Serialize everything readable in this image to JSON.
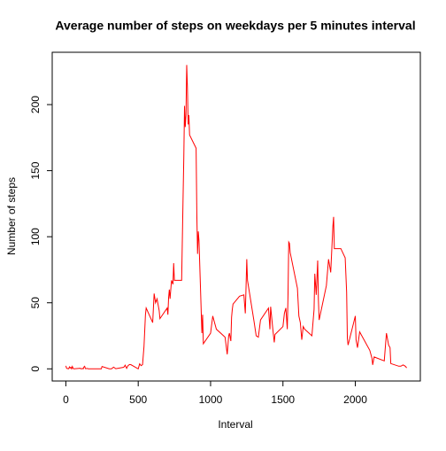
{
  "chart_data": {
    "type": "line",
    "title": "Average number of steps on weekdays per 5 minutes interval",
    "xlabel": "Interval",
    "ylabel": "Number of steps",
    "xlim": [
      -94.2,
      2449.2
    ],
    "xticks": [
      0,
      500,
      1000,
      1500,
      2000
    ],
    "ylim": [
      -9.2,
      239.6
    ],
    "yticks": [
      0,
      50,
      100,
      150,
      200
    ],
    "grid": false,
    "series": [
      {
        "color": "#ff0000",
        "x": [
          0,
          5,
          10,
          15,
          20,
          25,
          30,
          35,
          40,
          45,
          50,
          55,
          100,
          105,
          110,
          115,
          120,
          125,
          130,
          135,
          140,
          145,
          150,
          155,
          200,
          215,
          230,
          245,
          250,
          300,
          315,
          330,
          345,
          400,
          410,
          420,
          430,
          440,
          450,
          500,
          510,
          520,
          530,
          540,
          550,
          555,
          600,
          610,
          620,
          630,
          645,
          650,
          700,
          705,
          710,
          715,
          720,
          730,
          740,
          745,
          750,
          800,
          810,
          815,
          820,
          825,
          830,
          835,
          840,
          845,
          850,
          855,
          900,
          905,
          910,
          915,
          920,
          930,
          940,
          945,
          950,
          1000,
          1015,
          1030,
          1040,
          1100,
          1115,
          1125,
          1130,
          1140,
          1145,
          1150,
          1155,
          1200,
          1230,
          1240,
          1245,
          1250,
          1255,
          1300,
          1315,
          1330,
          1345,
          1400,
          1410,
          1415,
          1430,
          1440,
          1445,
          1500,
          1510,
          1520,
          1530,
          1535,
          1540,
          1545,
          1550,
          1600,
          1610,
          1620,
          1630,
          1640,
          1650,
          1700,
          1715,
          1720,
          1730,
          1740,
          1745,
          1750,
          1800,
          1815,
          1830,
          1845,
          1850,
          1855,
          1900,
          1930,
          1940,
          1945,
          1950,
          2000,
          2005,
          2015,
          2030,
          2100,
          2115,
          2120,
          2130,
          2200,
          2215,
          2230,
          2240,
          2245,
          2300,
          2315,
          2330,
          2345,
          2355
        ],
        "values": [
          2.3,
          0.5,
          0.2,
          0.2,
          0.1,
          1.5,
          0.7,
          1.2,
          0,
          1.8,
          0.4,
          0,
          0.4,
          0,
          0.1,
          0.3,
          0,
          1.4,
          1.9,
          0.2,
          0.2,
          0.3,
          0.3,
          0,
          0,
          0,
          0,
          0,
          1.8,
          0,
          0,
          1.3,
          0.1,
          1.2,
          2.8,
          0.4,
          2.5,
          3.3,
          3.1,
          0,
          3.8,
          2.4,
          3.2,
          17,
          41,
          46,
          35,
          57,
          50,
          53,
          44,
          38,
          46,
          41,
          54,
          60,
          53,
          67,
          64,
          80,
          67,
          67,
          130,
          160,
          199,
          183,
          192,
          230,
          213,
          185,
          192,
          177,
          167,
          117,
          87,
          104,
          97,
          62,
          27,
          41,
          19,
          27,
          40,
          34,
          30,
          24,
          11,
          25,
          27,
          21,
          39,
          45,
          49,
          55,
          56,
          42,
          62,
          83,
          67,
          36,
          25,
          24,
          37,
          46,
          30,
          47,
          30,
          20,
          26,
          32,
          42,
          46,
          30,
          56,
          96,
          95,
          88,
          61,
          40,
          35,
          22,
          32,
          30,
          25,
          45,
          72,
          56,
          82,
          52,
          37,
          63,
          83,
          73,
          108,
          115,
          91,
          91,
          84,
          58,
          23,
          18,
          40,
          22,
          16,
          28,
          14,
          8,
          3,
          9,
          6,
          27,
          18,
          16,
          4,
          2,
          2,
          3,
          2,
          0.7
        ]
      }
    ]
  }
}
